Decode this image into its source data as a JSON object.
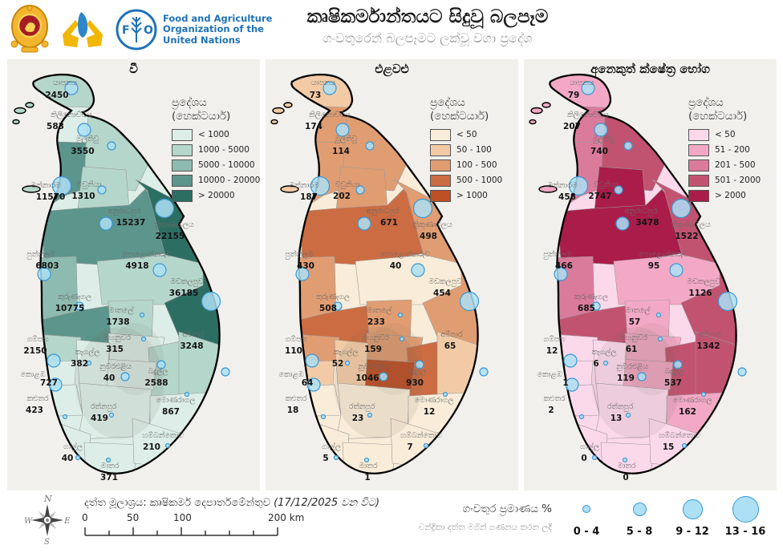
{
  "header": {
    "title": "කෘෂිකර්මාන්තයට සිදුවූ බලපෑම",
    "subtitle": "ගංවතුරෙන් බලපෑමට ලක්වූ වගා ප්‍රදේශ",
    "fao_lines": [
      "Food and Agriculture",
      "Organization of the",
      "United Nations"
    ],
    "logos": [
      "sri-lanka-emblem",
      "hands-island-logo",
      "fao-logo"
    ]
  },
  "maps": [
    {
      "id": "paddy",
      "title": "වී",
      "legend_title_line1": "ප්‍රදේශය",
      "legend_title_line2": "(හෙක්ටයාර්)",
      "classes": [
        {
          "label": "< 1000",
          "color": "#ddeee8"
        },
        {
          "label": "1000 - 5000",
          "color": "#b5d6cb"
        },
        {
          "label": "5000 - 10000",
          "color": "#8ebbaf"
        },
        {
          "label": "10000 - 20000",
          "color": "#5c958b"
        },
        {
          "label": "> 20000",
          "color": "#2d6e63"
        }
      ]
    },
    {
      "id": "vegetables",
      "title": "එළවළු",
      "legend_title_line1": "ප්‍රදේශය",
      "legend_title_line2": "(හෙක්ටයාර්)",
      "classes": [
        {
          "label": "< 50",
          "color": "#f9ecd8"
        },
        {
          "label": "50 - 100",
          "color": "#f2cba6"
        },
        {
          "label": "100 - 500",
          "color": "#e19d72"
        },
        {
          "label": "500 - 1000",
          "color": "#cc6c42"
        },
        {
          "label": "> 1000",
          "color": "#bf4f24"
        }
      ]
    },
    {
      "id": "other-field-crops",
      "title": "අනෙකුත් ක්ෂේත්‍ර භෝග",
      "legend_title_line1": "ප්‍රදේශය",
      "legend_title_line2": "(හෙක්ටයාර්)",
      "classes": [
        {
          "label": "< 50",
          "color": "#fcd8eb"
        },
        {
          "label": "51 - 200",
          "color": "#f3a9c5"
        },
        {
          "label": "201 - 500",
          "color": "#da7b9c"
        },
        {
          "label": "501 - 2000",
          "color": "#c25370"
        },
        {
          "label": "> 2000",
          "color": "#aa1d4a"
        }
      ]
    }
  ],
  "districts": [
    {
      "id": "jaffna",
      "name": "යාපනය",
      "size_class": 2,
      "values": [
        2450,
        73,
        79
      ],
      "color_class": [
        1,
        1,
        1
      ]
    },
    {
      "id": "kilinochchi",
      "name": "කිලිනොච්චිය",
      "size_class": 2,
      "values": [
        583,
        174,
        207
      ],
      "color_class": [
        0,
        2,
        2
      ]
    },
    {
      "id": "mullaitivu",
      "name": "මුලතිවු",
      "size_class": 1,
      "values": [
        3550,
        114,
        740
      ],
      "color_class": [
        1,
        2,
        3
      ]
    },
    {
      "id": "mannar",
      "name": "මන්නාරම",
      "size_class": 3,
      "values": [
        11570,
        187,
        458
      ],
      "color_class": [
        3,
        2,
        2
      ]
    },
    {
      "id": "vavuniya",
      "name": "වවුනියා",
      "size_class": 1,
      "values": [
        1310,
        202,
        2747
      ],
      "color_class": [
        1,
        2,
        4
      ]
    },
    {
      "id": "anuradhapura",
      "name": "අනුරාධපුර",
      "size_class": 2,
      "values": [
        15237,
        671,
        3478
      ],
      "color_class": [
        3,
        3,
        4
      ]
    },
    {
      "id": "trincomalee",
      "name": "ත්‍රිකුණාමලය",
      "size_class": 3,
      "values": [
        22155,
        498,
        1522
      ],
      "color_class": [
        4,
        2,
        3
      ]
    },
    {
      "id": "puttalam",
      "name": "පුත්තලම",
      "size_class": 2,
      "values": [
        6803,
        430,
        466
      ],
      "color_class": [
        2,
        2,
        2
      ]
    },
    {
      "id": "polonnaruwa",
      "name": "පොළොන්නරුව",
      "size_class": 2,
      "values": [
        4918,
        40,
        95
      ],
      "color_class": [
        1,
        0,
        1
      ]
    },
    {
      "id": "batticaloa",
      "name": "මඩකලපුව",
      "size_class": 3,
      "values": [
        36185,
        454,
        1126
      ],
      "color_class": [
        4,
        2,
        3
      ]
    },
    {
      "id": "kurunegala",
      "name": "කුරුණෑගල",
      "size_class": 1,
      "values": [
        10775,
        508,
        685
      ],
      "color_class": [
        3,
        3,
        3
      ]
    },
    {
      "id": "matale",
      "name": "මාතලේ",
      "size_class": 0,
      "values": [
        1738,
        233,
        57
      ],
      "color_class": [
        1,
        2,
        1
      ]
    },
    {
      "id": "kandy",
      "name": "මහනුවර",
      "size_class": 0,
      "values": [
        315,
        159,
        61
      ],
      "color_class": [
        0,
        2,
        1
      ]
    },
    {
      "id": "nuwara_eliya",
      "name": "නුවරඑළිය",
      "size_class": 1,
      "values": [
        40,
        1046,
        119
      ],
      "color_class": [
        0,
        4,
        1
      ]
    },
    {
      "id": "badulla",
      "name": "බදුල්ල",
      "size_class": 1,
      "values": [
        2588,
        930,
        537
      ],
      "color_class": [
        1,
        3,
        3
      ]
    },
    {
      "id": "ampara",
      "name": "අම්පාර",
      "size_class": 1,
      "values": [
        3248,
        65,
        1342
      ],
      "color_class": [
        1,
        1,
        3
      ]
    },
    {
      "id": "gampaha",
      "name": "ගම්පහ",
      "size_class": 2,
      "values": [
        2150,
        110,
        12
      ],
      "color_class": [
        1,
        2,
        0
      ]
    },
    {
      "id": "kegalle",
      "name": "කෑගල්ල",
      "size_class": 0,
      "values": [
        382,
        52,
        6
      ],
      "color_class": [
        0,
        1,
        0
      ]
    },
    {
      "id": "colombo",
      "name": "කොළඹ",
      "size_class": 2,
      "values": [
        727,
        64,
        1
      ],
      "color_class": [
        0,
        1,
        0
      ]
    },
    {
      "id": "kalutara",
      "name": "කළුතර",
      "size_class": 0,
      "values": [
        423,
        18,
        2
      ],
      "color_class": [
        0,
        0,
        0
      ]
    },
    {
      "id": "ratnapura",
      "name": "රත්නපුර",
      "size_class": 0,
      "values": [
        419,
        23,
        13
      ],
      "color_class": [
        0,
        0,
        0
      ]
    },
    {
      "id": "monaragala",
      "name": "මොණරාගල",
      "size_class": 0,
      "values": [
        867,
        12,
        162
      ],
      "color_class": [
        0,
        0,
        1
      ]
    },
    {
      "id": "galle",
      "name": "ගාල්ල",
      "size_class": 0,
      "values": [
        40,
        5,
        0
      ],
      "color_class": [
        0,
        0,
        0
      ]
    },
    {
      "id": "matara",
      "name": "මාතර",
      "size_class": 0,
      "values": [
        371,
        1,
        0
      ],
      "color_class": [
        0,
        0,
        0
      ]
    },
    {
      "id": "hambantota",
      "name": "හම්බන්තොට",
      "size_class": 0,
      "values": [
        210,
        7,
        15
      ],
      "color_class": [
        0,
        0,
        0
      ]
    }
  ],
  "footer": {
    "source_label": "දත්ත මූලාශ්‍රය:",
    "source_name": "කෘෂිකර්ම දෙපාර්තමේන්තුව",
    "source_date": "(17/12/2025 වන විට)",
    "compass": {
      "n": "N",
      "e": "E",
      "s": "S",
      "w": "W"
    },
    "scale": {
      "labels": [
        "0",
        "50",
        "100",
        "200 km"
      ]
    },
    "flood_legend": {
      "title": "ගංවතුර ප්‍රමාණය %",
      "subtitle": "චන්ද්‍රිකා දත්ත මගින් ගණනය කරන ලදී",
      "size_labels": [
        "0 - 4",
        "5 - 8",
        "9 - 12",
        "13 - 16"
      ],
      "circle_fill": "#ade0f5",
      "circle_stroke": "#3b97d3"
    }
  }
}
